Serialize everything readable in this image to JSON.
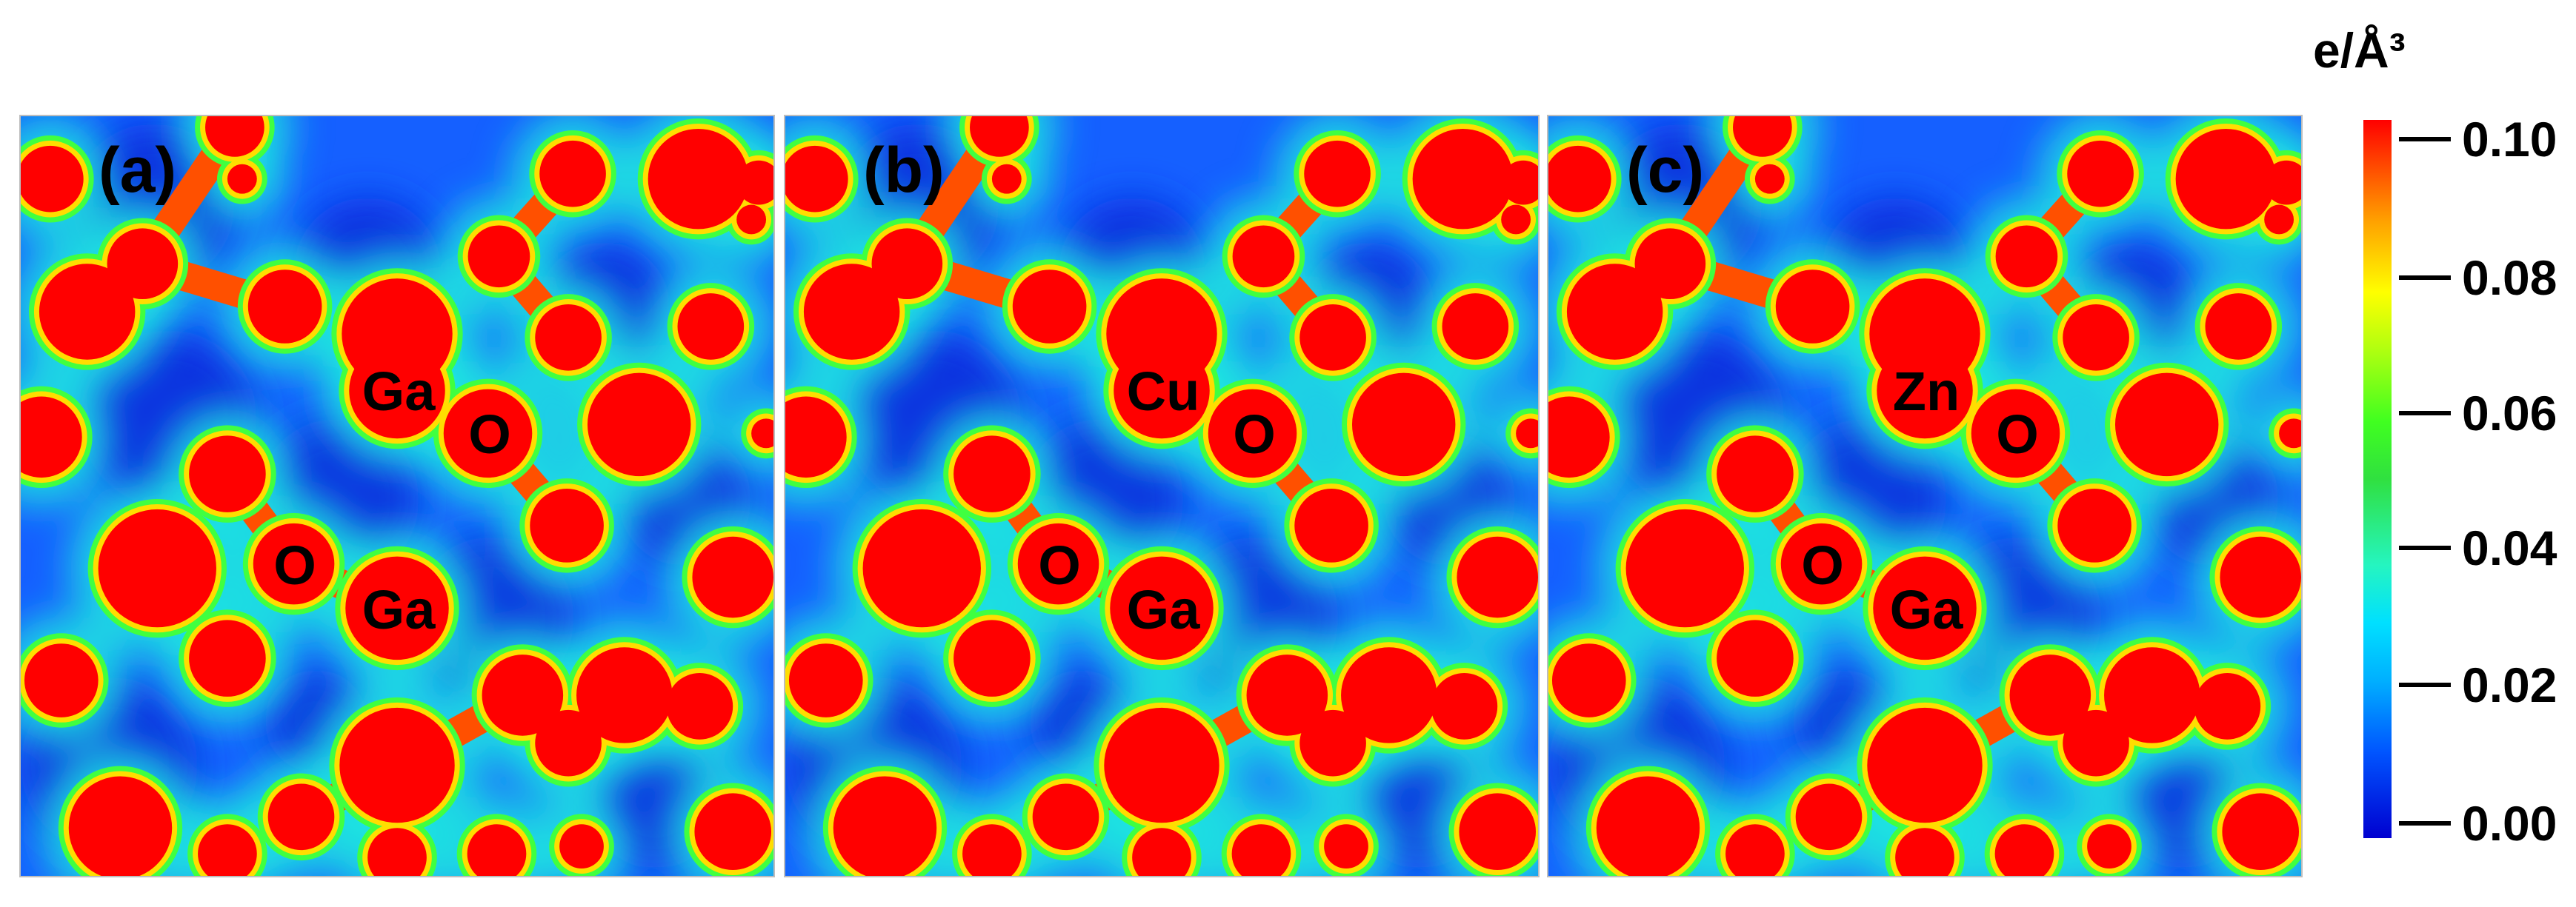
{
  "figure": {
    "panels": [
      {
        "tag": "(a)",
        "labels": {
          "top_metal": "Ga",
          "top_o": "O",
          "bottom_o": "O",
          "bottom_metal": "Ga"
        }
      },
      {
        "tag": "(b)",
        "labels": {
          "top_metal": "Cu",
          "top_o": "O",
          "bottom_o": "O",
          "bottom_metal": "Ga"
        }
      },
      {
        "tag": "(c)",
        "labels": {
          "top_metal": "Zn",
          "top_o": "O",
          "bottom_o": "O",
          "bottom_metal": "Ga"
        }
      }
    ],
    "colorbar": {
      "unit": "e/Å³",
      "ticks": [
        "0.10",
        "0.08",
        "0.06",
        "0.04",
        "0.02",
        "0.00"
      ],
      "colors": {
        "low": "#0000d0",
        "mid": "#30e040",
        "high": "#ff0000"
      }
    }
  }
}
